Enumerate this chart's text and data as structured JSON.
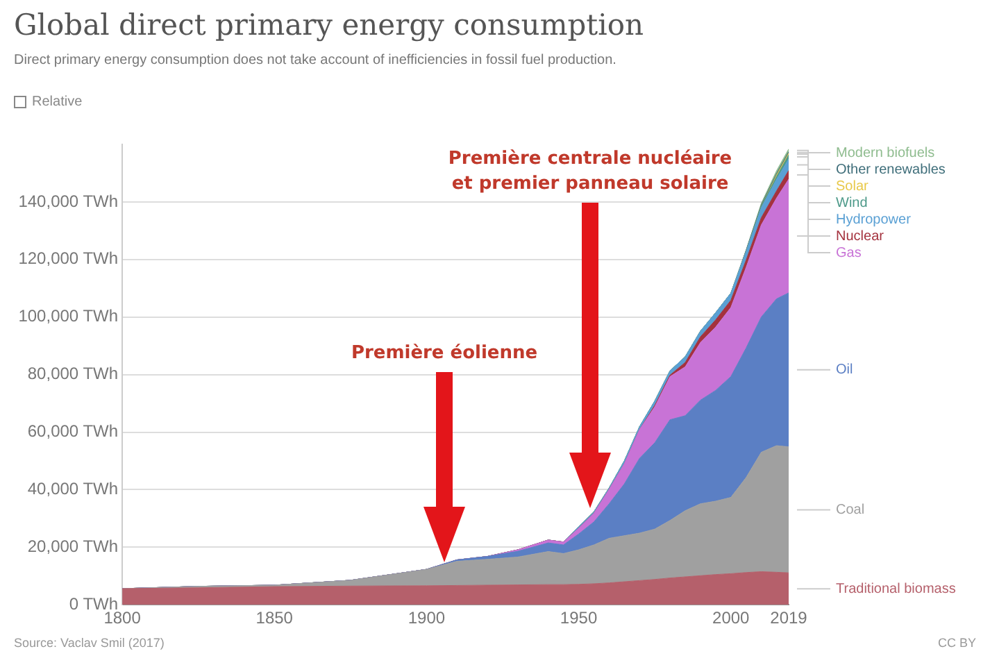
{
  "chart_data": {
    "type": "area",
    "stacked": true,
    "title": "Global direct primary energy consumption",
    "subtitle": "Direct primary energy consumption does not take account of inefficiencies in fossil fuel production.",
    "x": [
      1800,
      1825,
      1850,
      1875,
      1900,
      1910,
      1920,
      1930,
      1940,
      1945,
      1950,
      1955,
      1960,
      1965,
      1970,
      1975,
      1980,
      1985,
      1990,
      1995,
      2000,
      2005,
      2010,
      2015,
      2019
    ],
    "series": [
      {
        "name": "Traditional biomass",
        "color": "#b5606b",
        "values": [
          5600,
          5900,
          6300,
          6500,
          6600,
          6700,
          6800,
          6900,
          7000,
          7000,
          7100,
          7300,
          7600,
          8000,
          8400,
          8800,
          9300,
          9700,
          10100,
          10500,
          10800,
          11200,
          11500,
          11300,
          11100
        ]
      },
      {
        "name": "Coal",
        "color": "#a0a0a0",
        "values": [
          0,
          500,
          500,
          2000,
          5700,
          8400,
          9000,
          9700,
          11500,
          10800,
          12000,
          13500,
          15500,
          16000,
          16500,
          17500,
          20000,
          23000,
          25000,
          25500,
          26500,
          33000,
          41500,
          44000,
          43800
        ]
      },
      {
        "name": "Oil",
        "color": "#5b7fc4",
        "values": [
          0,
          0,
          0,
          0,
          0,
          500,
          1000,
          2000,
          3000,
          3000,
          5500,
          8000,
          12000,
          18000,
          26000,
          30000,
          35000,
          33000,
          36000,
          38500,
          42000,
          45000,
          47000,
          51000,
          53500
        ]
      },
      {
        "name": "Gas",
        "color": "#c873d6",
        "values": [
          0,
          0,
          0,
          0,
          0,
          0,
          0,
          500,
          1000,
          1000,
          2000,
          3000,
          5000,
          7000,
          10000,
          12500,
          15000,
          17000,
          20000,
          22000,
          24000,
          28000,
          32000,
          35000,
          39500
        ]
      },
      {
        "name": "Nuclear",
        "color": "#a4323e",
        "values": [
          0,
          0,
          0,
          0,
          0,
          0,
          0,
          0,
          0,
          0,
          0,
          0,
          0,
          0,
          0,
          500,
          500,
          1500,
          2000,
          2500,
          2500,
          2500,
          2500,
          2500,
          3000
        ]
      },
      {
        "name": "Hydropower",
        "color": "#5aa0d4",
        "values": [
          0,
          0,
          0,
          0,
          0,
          0,
          0,
          0,
          0,
          0,
          500,
          500,
          500,
          1000,
          1000,
          1500,
          1500,
          2000,
          2000,
          2500,
          2500,
          3000,
          3500,
          4000,
          4000
        ]
      },
      {
        "name": "Wind",
        "color": "#4e9a8a",
        "values": [
          0,
          0,
          0,
          0,
          0,
          0,
          0,
          0,
          0,
          0,
          0,
          0,
          0,
          0,
          0,
          0,
          0,
          0,
          0,
          0,
          0,
          0,
          500,
          1000,
          1500
        ]
      },
      {
        "name": "Solar",
        "color": "#e8c94a",
        "values": [
          0,
          0,
          0,
          0,
          0,
          0,
          0,
          0,
          0,
          0,
          0,
          0,
          0,
          0,
          0,
          0,
          0,
          0,
          0,
          0,
          0,
          0,
          0,
          500,
          500
        ]
      },
      {
        "name": "Other renewables",
        "color": "#3f6e7a",
        "values": [
          0,
          0,
          0,
          0,
          0,
          0,
          0,
          0,
          0,
          0,
          0,
          0,
          0,
          0,
          0,
          0,
          0,
          0,
          0,
          0,
          0,
          500,
          500,
          500,
          500
        ]
      },
      {
        "name": "Modern biofuels",
        "color": "#8fbc8f",
        "values": [
          0,
          0,
          0,
          0,
          0,
          0,
          0,
          0,
          0,
          0,
          0,
          0,
          0,
          0,
          0,
          0,
          0,
          0,
          0,
          0,
          0,
          0,
          500,
          1000,
          1000
        ]
      }
    ],
    "xlim": [
      1800,
      2019
    ],
    "xticks": [
      1800,
      1850,
      1900,
      1950,
      2000,
      2019
    ],
    "ylim": [
      0,
      160000
    ],
    "yticks": [
      {
        "value": 0,
        "label": "0 TWh"
      },
      {
        "value": 20000,
        "label": "20,000 TWh"
      },
      {
        "value": 40000,
        "label": "40,000 TWh"
      },
      {
        "value": 60000,
        "label": "60,000 TWh"
      },
      {
        "value": 80000,
        "label": "80,000 TWh"
      },
      {
        "value": 100000,
        "label": "100,000 TWh"
      },
      {
        "value": 120000,
        "label": "120,000 TWh"
      },
      {
        "value": 140000,
        "label": "140,000 TWh"
      }
    ],
    "grid": "y",
    "legend": "right",
    "annotations": [
      "Relative",
      "Source: Vaclav Smil (2017)",
      "CC BY",
      "Première éolienne",
      "Première centrale nucléaire\net premier panneau solaire"
    ]
  }
}
